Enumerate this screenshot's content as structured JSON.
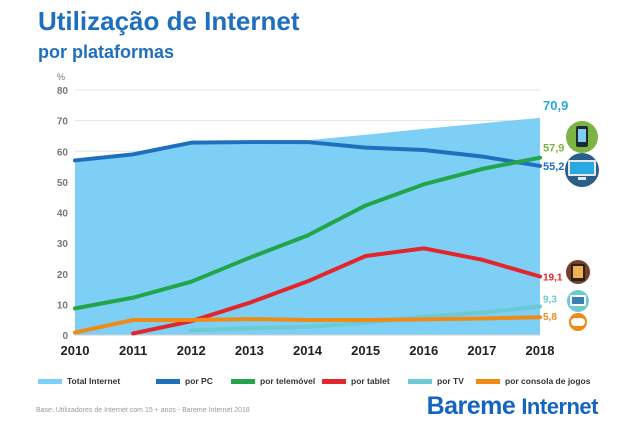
{
  "title": "Utilização de Internet",
  "subtitle": "por plataformas",
  "footnote": "Base: Utilizadores de Internet com 15 + anos - Bareme Internet 2018",
  "logo": {
    "brand": "Bareme",
    "product": "Internet"
  },
  "chart_data": {
    "type": "line",
    "ylabel": "%",
    "ylim": [
      0,
      80
    ],
    "yticks": [
      0,
      10,
      20,
      30,
      40,
      50,
      60,
      70,
      80
    ],
    "grid": true,
    "legend_position": "bottom",
    "categories": [
      "2010",
      "2011",
      "2012",
      "2013",
      "2014",
      "2015",
      "2016",
      "2017",
      "2018"
    ],
    "series": [
      {
        "name": "Total Internet",
        "style": "area",
        "color": "#7ecff5",
        "values": [
          57,
          59,
          62.8,
          63,
          63.6,
          65.4,
          67.3,
          69.1,
          70.9
        ],
        "end_label": "70,9",
        "label_color": "#29a9e1",
        "icon": ""
      },
      {
        "name": "por PC",
        "style": "line",
        "color": "#1f6fbf",
        "values": [
          57,
          59,
          62.8,
          63,
          63,
          61.2,
          60.4,
          58.3,
          55.2
        ],
        "end_label": "55,2",
        "label_color": "#1f6fbf",
        "icon": "desktop-monitor-icon"
      },
      {
        "name": "por telemóvel",
        "style": "line",
        "color": "#22a54a",
        "values": [
          8.7,
          12.2,
          17.4,
          25.2,
          32.5,
          42.3,
          49.2,
          54.2,
          57.9
        ],
        "end_label": "57,9",
        "label_color": "#7cb342",
        "icon": "smartphone-icon"
      },
      {
        "name": "por tablet",
        "style": "line",
        "color": "#e2262c",
        "values": [
          null,
          0.5,
          4.5,
          10.5,
          17.5,
          25.8,
          28.3,
          24.6,
          19.1
        ],
        "end_label": "19,1",
        "label_color": "#e2262c",
        "icon": "tablet-icon"
      },
      {
        "name": "por TV",
        "style": "line",
        "color": "#6ccad2",
        "values": [
          null,
          null,
          1.5,
          2.2,
          2.6,
          4,
          6,
          7.3,
          9.3
        ],
        "end_label": "9,3",
        "label_color": "#6ccad2",
        "icon": "tv-icon"
      },
      {
        "name": "por consola de jogos",
        "style": "line",
        "color": "#ef8a17",
        "values": [
          0.8,
          4.9,
          4.9,
          5.2,
          4.9,
          4.9,
          5.1,
          5.4,
          5.8
        ],
        "end_label": "5,8",
        "label_color": "#ef8a17",
        "icon": "gamepad-icon"
      }
    ]
  }
}
